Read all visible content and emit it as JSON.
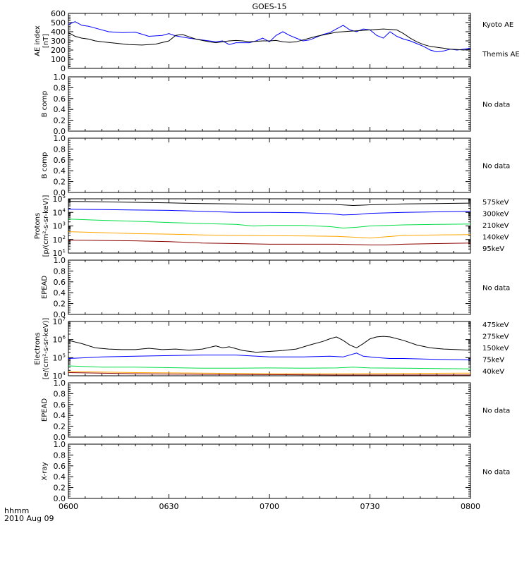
{
  "title": "GOES-15",
  "footer": {
    "time_label": "hhmm",
    "date_label": "2010 Aug 09"
  },
  "x_axis": {
    "ticks": [
      "0600",
      "0630",
      "0700",
      "0730",
      "0800"
    ],
    "range_minutes": [
      0,
      120
    ]
  },
  "chart_data": [
    {
      "type": "line",
      "ylabel": [
        "AE index",
        "[nT]"
      ],
      "ylim": [
        0,
        600
      ],
      "yticks": [
        "0",
        "100",
        "200",
        "300",
        "400",
        "500",
        "600"
      ],
      "series": [
        {
          "name": "Kyoto AE",
          "color": "#0000ff",
          "x": [
            0,
            2,
            4,
            6,
            8,
            12,
            16,
            20,
            24,
            28,
            30,
            32,
            36,
            40,
            44,
            46,
            48,
            50,
            54,
            56,
            58,
            60,
            62,
            64,
            66,
            68,
            70,
            72,
            74,
            76,
            78,
            80,
            82,
            84,
            86,
            88,
            90,
            92,
            94,
            96,
            98,
            100,
            102,
            104,
            106,
            108,
            110,
            112,
            114,
            116,
            118,
            120
          ],
          "y": [
            480,
            510,
            470,
            460,
            440,
            400,
            390,
            395,
            350,
            360,
            380,
            355,
            330,
            310,
            290,
            300,
            260,
            280,
            280,
            300,
            330,
            290,
            360,
            400,
            360,
            330,
            300,
            310,
            340,
            370,
            390,
            430,
            470,
            420,
            400,
            430,
            420,
            360,
            330,
            400,
            350,
            320,
            300,
            270,
            240,
            200,
            180,
            190,
            210,
            200,
            210,
            220
          ]
        },
        {
          "name": "Themis AE",
          "color": "#000000",
          "x": [
            0,
            2,
            4,
            6,
            8,
            10,
            14,
            18,
            22,
            26,
            30,
            32,
            34,
            36,
            38,
            40,
            42,
            44,
            46,
            48,
            50,
            52,
            54,
            56,
            58,
            60,
            62,
            64,
            66,
            68,
            70,
            72,
            74,
            76,
            78,
            80,
            82,
            84,
            86,
            88,
            90,
            92,
            94,
            96,
            98,
            100,
            102,
            104,
            106,
            108,
            110,
            112,
            114,
            116,
            118,
            120
          ],
          "y": [
            390,
            350,
            330,
            320,
            300,
            290,
            275,
            260,
            255,
            265,
            300,
            360,
            370,
            345,
            320,
            305,
            290,
            280,
            290,
            300,
            305,
            300,
            290,
            295,
            300,
            300,
            305,
            290,
            285,
            290,
            310,
            330,
            350,
            365,
            380,
            395,
            400,
            405,
            410,
            415,
            420,
            425,
            430,
            425,
            420,
            380,
            330,
            290,
            260,
            240,
            230,
            220,
            210,
            205,
            200,
            210
          ]
        }
      ]
    },
    {
      "type": "line",
      "ylabel": [
        "B comp"
      ],
      "ylim": [
        0,
        1
      ],
      "yticks": [
        "0.0",
        "0.2",
        "0.4",
        "0.6",
        "0.8",
        "1.0"
      ],
      "note": "No data"
    },
    {
      "type": "line",
      "ylabel": [
        "B comp"
      ],
      "ylim": [
        0,
        1
      ],
      "yticks": [
        "0.0",
        "0.2",
        "0.4",
        "0.6",
        "0.8",
        "1.0"
      ],
      "note": "No data"
    },
    {
      "type": "line",
      "scale": "log",
      "ylabel": [
        "Protons",
        "[p/(cm²-s-sr-keV)]"
      ],
      "ylim": [
        10,
        100000
      ],
      "yticks_exp": [
        1,
        2,
        3,
        4,
        5
      ],
      "series": [
        {
          "name": "575keV",
          "color": "#8b0000",
          "x": [
            0,
            10,
            20,
            30,
            40,
            50,
            60,
            70,
            80,
            90,
            95,
            100,
            110,
            120
          ],
          "y": [
            90,
            85,
            80,
            70,
            55,
            50,
            45,
            45,
            45,
            40,
            40,
            45,
            50,
            55
          ]
        },
        {
          "name": "300keV",
          "color": "#ffa500",
          "x": [
            0,
            10,
            20,
            30,
            40,
            50,
            60,
            70,
            80,
            85,
            90,
            95,
            100,
            110,
            120
          ],
          "y": [
            380,
            320,
            270,
            250,
            220,
            200,
            190,
            185,
            170,
            150,
            130,
            160,
            200,
            220,
            230
          ]
        },
        {
          "name": "210keV",
          "color": "#00dd44",
          "x": [
            0,
            10,
            20,
            30,
            40,
            50,
            55,
            60,
            70,
            78,
            82,
            86,
            90,
            95,
            100,
            110,
            120
          ],
          "y": [
            3200,
            2600,
            2200,
            1800,
            1500,
            1300,
            1000,
            1100,
            1100,
            900,
            700,
            800,
            1000,
            1100,
            1200,
            1300,
            1400
          ]
        },
        {
          "name": "140keV",
          "color": "#0000ff",
          "x": [
            0,
            10,
            20,
            30,
            40,
            50,
            60,
            70,
            78,
            82,
            86,
            90,
            100,
            110,
            120
          ],
          "y": [
            17000,
            16000,
            15000,
            14000,
            12000,
            10000,
            10000,
            9500,
            8000,
            6500,
            7000,
            8500,
            10000,
            11000,
            12000
          ]
        },
        {
          "name": "95keV",
          "color": "#000000",
          "x": [
            0,
            10,
            20,
            30,
            40,
            50,
            60,
            70,
            80,
            85,
            90,
            100,
            110,
            120
          ],
          "y": [
            65000,
            60000,
            55000,
            50000,
            45000,
            42000,
            40000,
            40000,
            38000,
            32000,
            36000,
            42000,
            45000,
            48000
          ]
        }
      ]
    },
    {
      "type": "line",
      "ylabel": [
        "EPEAD"
      ],
      "ylim": [
        0,
        1
      ],
      "yticks": [
        "0.0",
        "0.2",
        "0.4",
        "0.6",
        "0.8",
        "1.0"
      ],
      "note": "No data"
    },
    {
      "type": "line",
      "scale": "log",
      "ylabel": [
        "Electrons",
        "[e/(cm²-s-sr-keV)]"
      ],
      "ylim": [
        10000,
        10000000
      ],
      "yticks_exp": [
        4,
        5,
        6,
        7
      ],
      "series": [
        {
          "name": "475keV",
          "color": "#8b0000",
          "x": [
            0,
            20,
            40,
            60,
            80,
            100,
            120
          ],
          "y": [
            15000,
            13000,
            12000,
            11500,
            11000,
            11000,
            11000
          ]
        },
        {
          "name": "275keV",
          "color": "#ffa500",
          "x": [
            0,
            20,
            40,
            60,
            80,
            100,
            120
          ],
          "y": [
            17000,
            15000,
            14000,
            13000,
            13000,
            13500,
            14000
          ]
        },
        {
          "name": "150keV",
          "color": "#00dd44",
          "x": [
            0,
            10,
            20,
            30,
            40,
            50,
            60,
            70,
            80,
            85,
            90,
            100,
            110,
            120
          ],
          "y": [
            35000,
            30000,
            30000,
            28000,
            26000,
            26000,
            27000,
            26000,
            27000,
            30000,
            27000,
            26000,
            25000,
            24000
          ]
        },
        {
          "name": "75keV",
          "color": "#0000ff",
          "x": [
            0,
            10,
            20,
            30,
            40,
            50,
            60,
            70,
            78,
            82,
            86,
            88,
            92,
            96,
            100,
            110,
            120
          ],
          "y": [
            90000,
            110000,
            120000,
            130000,
            140000,
            140000,
            110000,
            110000,
            120000,
            110000,
            180000,
            120000,
            100000,
            90000,
            90000,
            80000,
            75000
          ]
        },
        {
          "name": "40keV",
          "color": "#000000",
          "x": [
            0,
            4,
            8,
            12,
            16,
            20,
            24,
            28,
            32,
            36,
            40,
            44,
            46,
            48,
            52,
            56,
            60,
            64,
            68,
            72,
            76,
            78,
            80,
            82,
            84,
            86,
            88,
            90,
            92,
            94,
            96,
            100,
            104,
            108,
            112,
            116,
            120
          ],
          "y": [
            900000,
            600000,
            350000,
            300000,
            280000,
            280000,
            330000,
            280000,
            300000,
            260000,
            300000,
            450000,
            350000,
            400000,
            250000,
            200000,
            220000,
            250000,
            300000,
            500000,
            800000,
            1100000,
            1400000,
            900000,
            500000,
            350000,
            600000,
            1100000,
            1400000,
            1500000,
            1400000,
            900000,
            500000,
            350000,
            300000,
            280000,
            260000
          ]
        }
      ]
    },
    {
      "type": "line",
      "ylabel": [
        "EPEAD"
      ],
      "ylim": [
        0,
        1
      ],
      "yticks": [
        "0.0",
        "0.2",
        "0.4",
        "0.6",
        "0.8",
        "1.0"
      ],
      "note": "No data"
    },
    {
      "type": "line",
      "ylabel": [
        "X-ray"
      ],
      "ylim": [
        0,
        1
      ],
      "yticks": [
        "0.0",
        "0.2",
        "0.4",
        "0.6",
        "0.8",
        "1.0"
      ],
      "note": "No data"
    }
  ]
}
